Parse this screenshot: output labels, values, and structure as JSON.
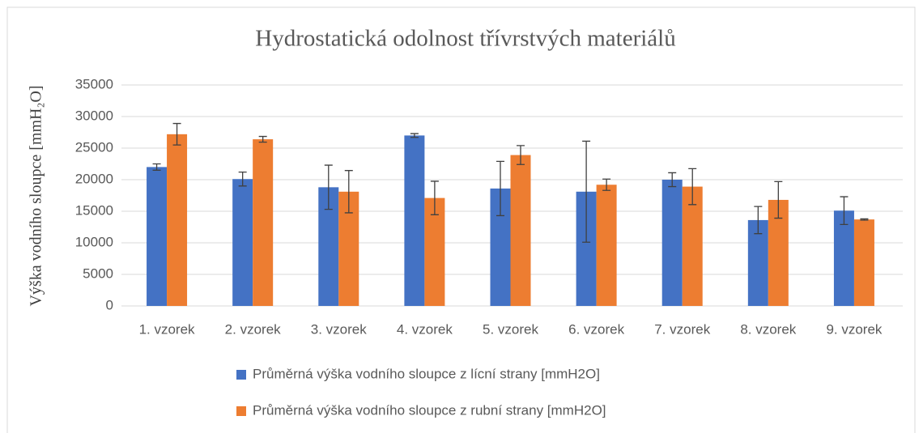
{
  "chart_data": {
    "type": "bar",
    "title": "Hydrostatická odolnost třívrstvých materiálů",
    "y_label": "Výška vodního sloupce [mmH₂O]",
    "categories": [
      "1. vzorek",
      "2. vzorek",
      "3. vzorek",
      "4. vzorek",
      "5. vzorek",
      "6. vzorek",
      "7. vzorek",
      "8. vzorek",
      "9. vzorek"
    ],
    "series": [
      {
        "name": "Průměrná výška vodního sloupce z lícní strany [mmH2O]",
        "color": "#4472c4",
        "values": [
          22000,
          20100,
          18800,
          27000,
          18600,
          18100,
          20000,
          13600,
          15100
        ],
        "errors": [
          500,
          1100,
          3500,
          300,
          4300,
          8000,
          1100,
          2150,
          2200
        ]
      },
      {
        "name": "Průměrná výška vodního sloupce z rubní strany [mmH2O]",
        "color": "#ed7d31",
        "values": [
          27200,
          26400,
          18100,
          17100,
          23900,
          19200,
          18900,
          16800,
          13700
        ],
        "errors": [
          1700,
          450,
          3350,
          2650,
          1500,
          900,
          2850,
          2900,
          100
        ]
      }
    ],
    "ylim": [
      0,
      35000
    ],
    "yticks": [
      0,
      5000,
      10000,
      15000,
      20000,
      25000,
      30000,
      35000
    ],
    "grid": true,
    "legend": "bottom"
  }
}
